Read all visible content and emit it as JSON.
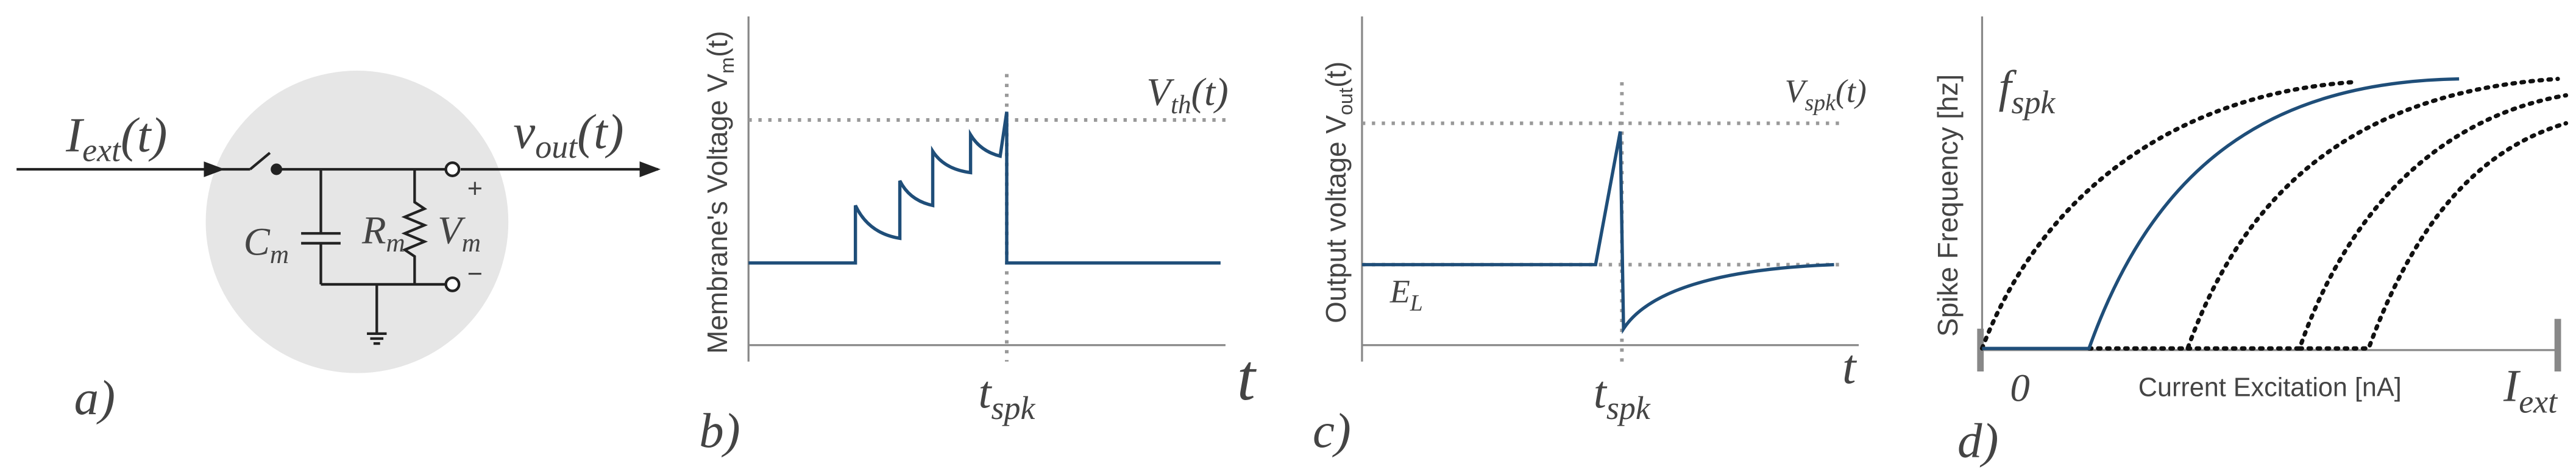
{
  "panel_a": {
    "input": {
      "base": "I",
      "sub": "ext",
      "tail": "(t)"
    },
    "output": {
      "base": "v",
      "sub": "out",
      "tail": "(t)"
    },
    "capacitor": {
      "base": "C",
      "sub": "m"
    },
    "resistor": {
      "base": "R",
      "sub": "m"
    },
    "voltage": {
      "base": "V",
      "sub": "m"
    },
    "plus": "+",
    "minus": "−",
    "tag": "a)"
  },
  "panel_b": {
    "y_label": {
      "base": "Membrane's Voltage V",
      "sub": "m",
      "tail": "(t)"
    },
    "threshold": {
      "base": "V",
      "sub": "th",
      "tail": "(t)"
    },
    "spike_time": {
      "base": "t",
      "sub": "spk"
    },
    "x_label": "t",
    "tag": "b)"
  },
  "panel_c": {
    "y_label": {
      "base": "Output voltage V",
      "sub": "out",
      "tail": "(t)"
    },
    "spike_level": {
      "base": "V",
      "sub": "spk",
      "tail": "(t)"
    },
    "rest_level": {
      "base": "E",
      "sub": "L"
    },
    "spike_time": {
      "base": "t",
      "sub": "spk"
    },
    "x_label": "t",
    "tag": "c)"
  },
  "panel_d": {
    "y_label": "Spike Frequency [hz]",
    "y_symbol": {
      "base": "f",
      "sub": "spk"
    },
    "origin": "0",
    "x_label": "Current Excitation [nA]",
    "x_symbol": {
      "base": "I",
      "sub": "ext"
    },
    "tag": "d)"
  }
}
